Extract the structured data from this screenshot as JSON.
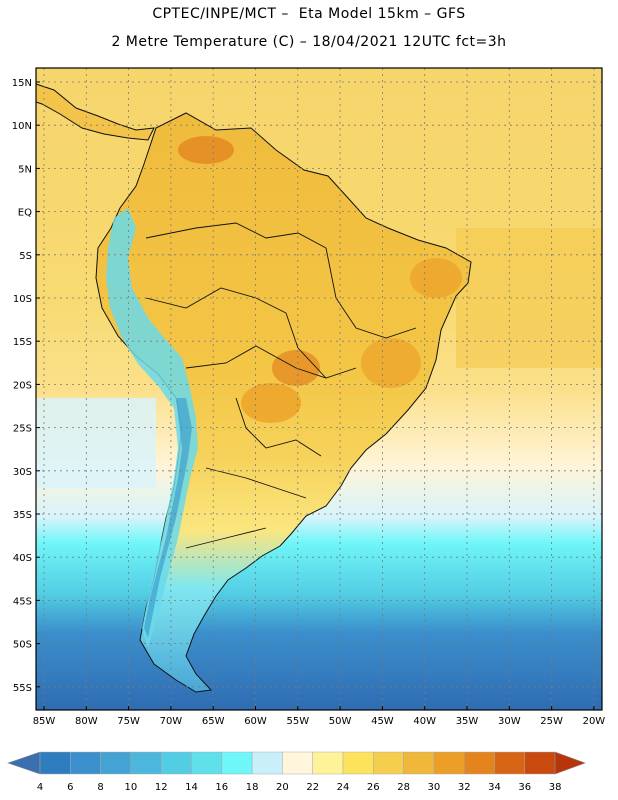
{
  "header": {
    "title_line1": "CPTEC/INPE/MCT –  Eta Model 15km – GFS",
    "title_line2": "2 Metre Temperature (C) – 18/04/2021 12UTC fct=3h"
  },
  "map": {
    "lat_labels": [
      "15N",
      "10N",
      "5N",
      "EQ",
      "5S",
      "10S",
      "15S",
      "20S",
      "25S",
      "30S",
      "35S",
      "40S",
      "45S",
      "50S",
      "55S"
    ],
    "lon_labels": [
      "85W",
      "80W",
      "75W",
      "70W",
      "65W",
      "60W",
      "55W",
      "50W",
      "45W",
      "40W",
      "35W",
      "30W",
      "25W",
      "20W"
    ]
  },
  "legend": {
    "levels": [
      "4",
      "6",
      "8",
      "10",
      "12",
      "14",
      "16",
      "18",
      "20",
      "22",
      "24",
      "26",
      "28",
      "30",
      "32",
      "34",
      "36",
      "38"
    ],
    "colors": [
      "#3a6fb0",
      "#2f7cbf",
      "#3b8fcc",
      "#45a3d3",
      "#4cb6dc",
      "#52cde3",
      "#5fe0ea",
      "#6ff6f8",
      "#c9f0fa",
      "#fff6dc",
      "#fff39a",
      "#fde35c",
      "#f6ce4d",
      "#f0b83b",
      "#eb9f26",
      "#e3841d",
      "#d86515",
      "#c84a0f",
      "#b8350a"
    ]
  }
}
